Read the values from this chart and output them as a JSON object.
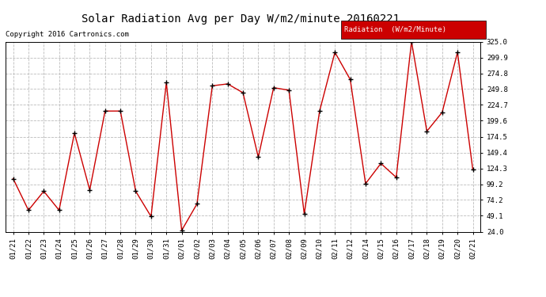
{
  "title": "Solar Radiation Avg per Day W/m2/minute 20160221",
  "copyright": "Copyright 2016 Cartronics.com",
  "legend_label": "Radiation  (W/m2/Minute)",
  "legend_bg": "#cc0000",
  "legend_text_color": "#ffffff",
  "line_color": "#cc0000",
  "marker_color": "#000000",
  "bg_color": "#ffffff",
  "grid_color": "#bbbbbb",
  "labels": [
    "01/21",
    "01/22",
    "01/23",
    "01/24",
    "01/25",
    "01/26",
    "01/27",
    "01/28",
    "01/29",
    "01/30",
    "01/31",
    "02/01",
    "02/02",
    "02/03",
    "02/04",
    "02/05",
    "02/06",
    "02/07",
    "02/08",
    "02/09",
    "02/10",
    "02/11",
    "02/12",
    "02/14",
    "02/15",
    "02/16",
    "02/17",
    "02/18",
    "02/19",
    "02/20",
    "02/21"
  ],
  "values": [
    108,
    58,
    88,
    58,
    180,
    90,
    215,
    215,
    88,
    48,
    260,
    26,
    68,
    255,
    258,
    244,
    142,
    252,
    248,
    52,
    215,
    308,
    265,
    100,
    132,
    110,
    325,
    183,
    213,
    308,
    122
  ],
  "yticks": [
    24.0,
    49.1,
    74.2,
    99.2,
    124.3,
    149.4,
    174.5,
    199.6,
    224.7,
    249.8,
    274.8,
    299.9,
    325.0
  ],
  "ylim": [
    24.0,
    325.0
  ],
  "title_fontsize": 10,
  "tick_fontsize": 6.5,
  "copyright_fontsize": 6.5,
  "legend_fontsize": 6.5
}
